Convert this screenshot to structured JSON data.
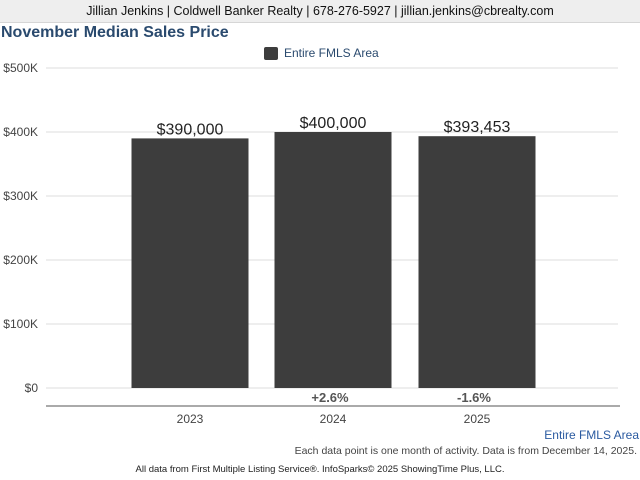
{
  "header": {
    "contact_line": "Jillian Jenkins | Coldwell Banker Realty | 678-276-5927 | jillian.jenkins@cbrealty.com"
  },
  "chart_data": {
    "type": "bar",
    "title": "November Median Sales Price",
    "categories": [
      "2023",
      "2024",
      "2025"
    ],
    "series": [
      {
        "name": "Entire FMLS Area",
        "values": [
          390000,
          400000,
          393453
        ],
        "color": "#3d3d3d"
      }
    ],
    "data_labels": [
      "$390,000",
      "$400,000",
      "$393,453"
    ],
    "change_labels": [
      "",
      "+2.6%",
      "-1.6%"
    ],
    "y_ticks": [
      0,
      100000,
      200000,
      300000,
      400000,
      500000
    ],
    "y_tick_labels": [
      "$0",
      "$100K",
      "$200K",
      "$300K",
      "$400K",
      "$500K"
    ],
    "ylim": [
      0,
      500000
    ],
    "grid": true,
    "legend_position": "top-center"
  },
  "footer": {
    "area_label": "Entire FMLS Area",
    "note": "Each data point is one month of activity. Data is from December 14, 2025.",
    "source": "All data from First Multiple Listing Service®. InfoSparks© 2025 ShowingTime Plus, LLC."
  }
}
